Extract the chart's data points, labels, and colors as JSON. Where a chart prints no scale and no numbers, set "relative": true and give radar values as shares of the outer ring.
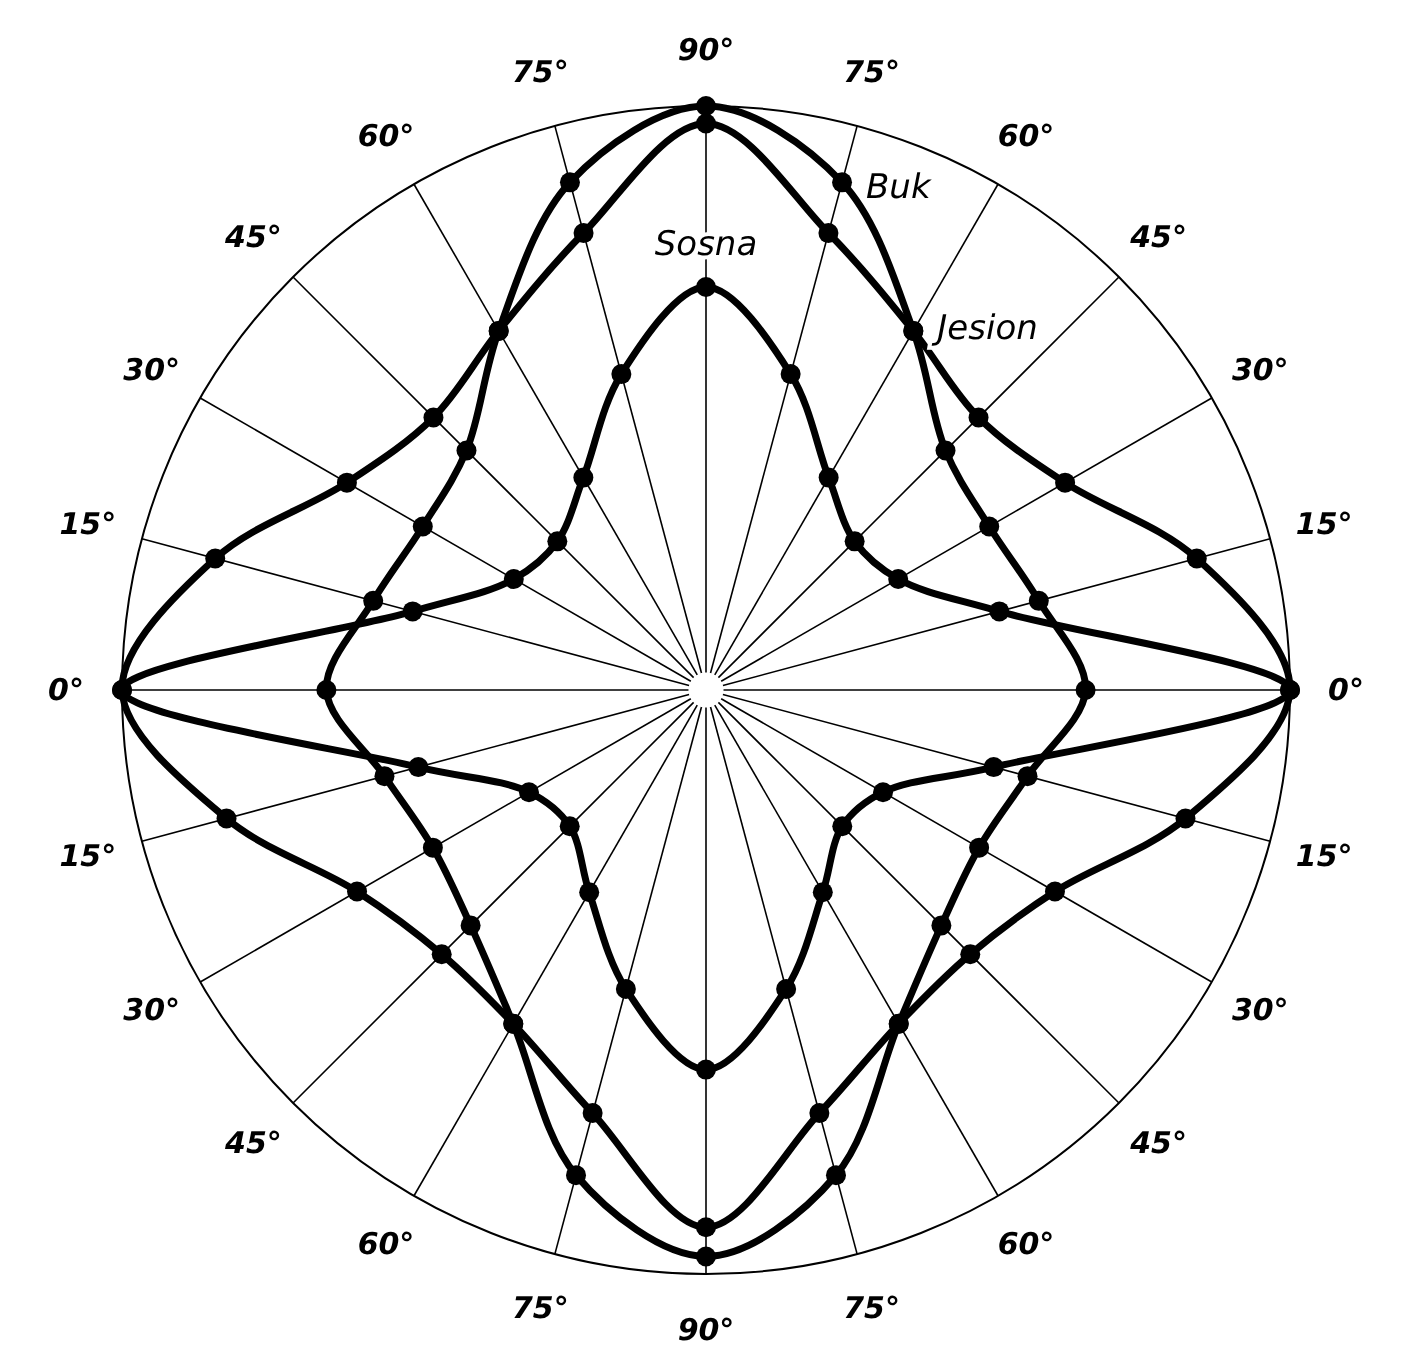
{
  "chart_data": {
    "type": "radar",
    "relative": true,
    "marker": "circle",
    "line_style": "solid",
    "legend": false,
    "categories": [
      "90°",
      "75°",
      "60°",
      "45°",
      "30°",
      "15°",
      "0°",
      "15°",
      "30°",
      "45°",
      "60°",
      "75°",
      "90°",
      "75°",
      "60°",
      "45°",
      "30°",
      "15°",
      "0°",
      "15°",
      "30°",
      "45°",
      "60°",
      "75°"
    ],
    "series": [
      {
        "name": "Sosna",
        "color": "#000000",
        "values": [
          0.69,
          0.56,
          0.42,
          0.36,
          0.38,
          0.52,
          1.0,
          0.51,
          0.35,
          0.33,
          0.4,
          0.53,
          0.65,
          0.53,
          0.4,
          0.33,
          0.35,
          0.51,
          1.0,
          0.52,
          0.38,
          0.36,
          0.42,
          0.56
        ]
      },
      {
        "name": "Buk",
        "color": "#000000",
        "values": [
          1.0,
          0.9,
          0.71,
          0.58,
          0.56,
          0.59,
          0.65,
          0.57,
          0.54,
          0.57,
          0.66,
          0.86,
          0.97,
          0.86,
          0.66,
          0.57,
          0.54,
          0.57,
          0.65,
          0.59,
          0.56,
          0.58,
          0.71,
          0.9
        ]
      },
      {
        "name": "Jesion",
        "color": "#000000",
        "values": [
          0.97,
          0.81,
          0.71,
          0.66,
          0.71,
          0.87,
          1.0,
          0.85,
          0.69,
          0.64,
          0.66,
          0.75,
          0.92,
          0.75,
          0.66,
          0.64,
          0.69,
          0.85,
          1.0,
          0.87,
          0.71,
          0.66,
          0.71,
          0.81
        ]
      }
    ]
  }
}
